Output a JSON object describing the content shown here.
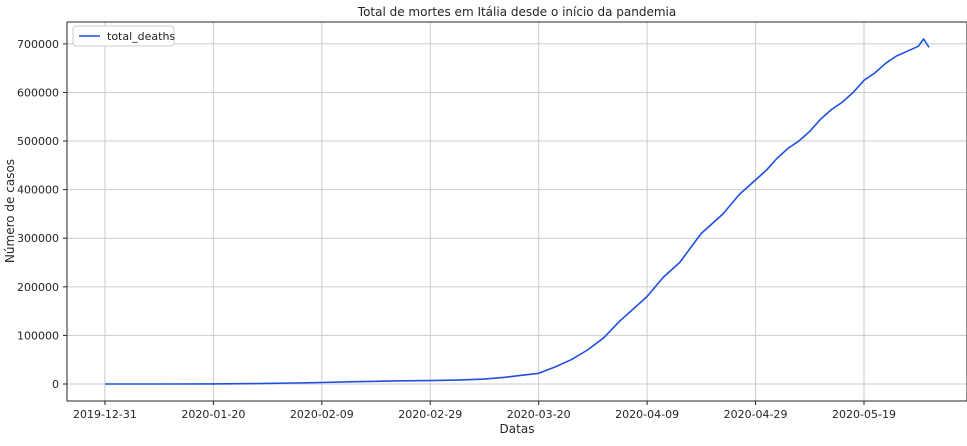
{
  "chart_data": {
    "type": "line",
    "title": "Total de mortes em Itália desde o início da pandemia",
    "xlabel": "Datas",
    "ylabel": "Número de casos",
    "x_start": "2019-12-31",
    "x_end": "2020-05-31",
    "xlim": [
      "2019-12-24",
      "2020-06-07"
    ],
    "ylim": [
      -35000,
      745000
    ],
    "x_ticks": [
      "2019-12-31",
      "2020-01-20",
      "2020-02-09",
      "2020-02-29",
      "2020-03-20",
      "2020-04-09",
      "2020-04-29",
      "2020-05-19"
    ],
    "y_ticks": [
      0,
      100000,
      200000,
      300000,
      400000,
      500000,
      600000,
      700000
    ],
    "grid": true,
    "legend_position": "top-left",
    "line_color": "#1f4fe0",
    "series": [
      {
        "name": "total_deaths",
        "x": [
          "2019-12-31",
          "2020-01-10",
          "2020-01-20",
          "2020-01-28",
          "2020-02-04",
          "2020-02-09",
          "2020-02-14",
          "2020-02-19",
          "2020-02-24",
          "2020-02-29",
          "2020-03-05",
          "2020-03-10",
          "2020-03-14",
          "2020-03-17",
          "2020-03-20",
          "2020-03-23",
          "2020-03-26",
          "2020-03-29",
          "2020-04-01",
          "2020-04-04",
          "2020-04-06",
          "2020-04-09",
          "2020-04-12",
          "2020-04-15",
          "2020-04-17",
          "2020-04-19",
          "2020-04-21",
          "2020-04-23",
          "2020-04-26",
          "2020-04-29",
          "2020-05-01",
          "2020-05-03",
          "2020-05-05",
          "2020-05-07",
          "2020-05-09",
          "2020-05-11",
          "2020-05-13",
          "2020-05-15",
          "2020-05-17",
          "2020-05-19",
          "2020-05-21",
          "2020-05-23",
          "2020-05-25",
          "2020-05-27",
          "2020-05-29",
          "2020-05-30",
          "2020-05-31"
        ],
        "values": [
          0,
          0,
          200,
          800,
          2000,
          3000,
          4500,
          5500,
          6500,
          7000,
          8000,
          10000,
          14000,
          18000,
          22000,
          35000,
          50000,
          70000,
          95000,
          130000,
          150000,
          180000,
          220000,
          250000,
          280000,
          310000,
          330000,
          350000,
          390000,
          420000,
          440000,
          465000,
          485000,
          500000,
          520000,
          545000,
          565000,
          580000,
          600000,
          625000,
          640000,
          660000,
          675000,
          685000,
          695000,
          710000,
          693000
        ]
      }
    ]
  }
}
